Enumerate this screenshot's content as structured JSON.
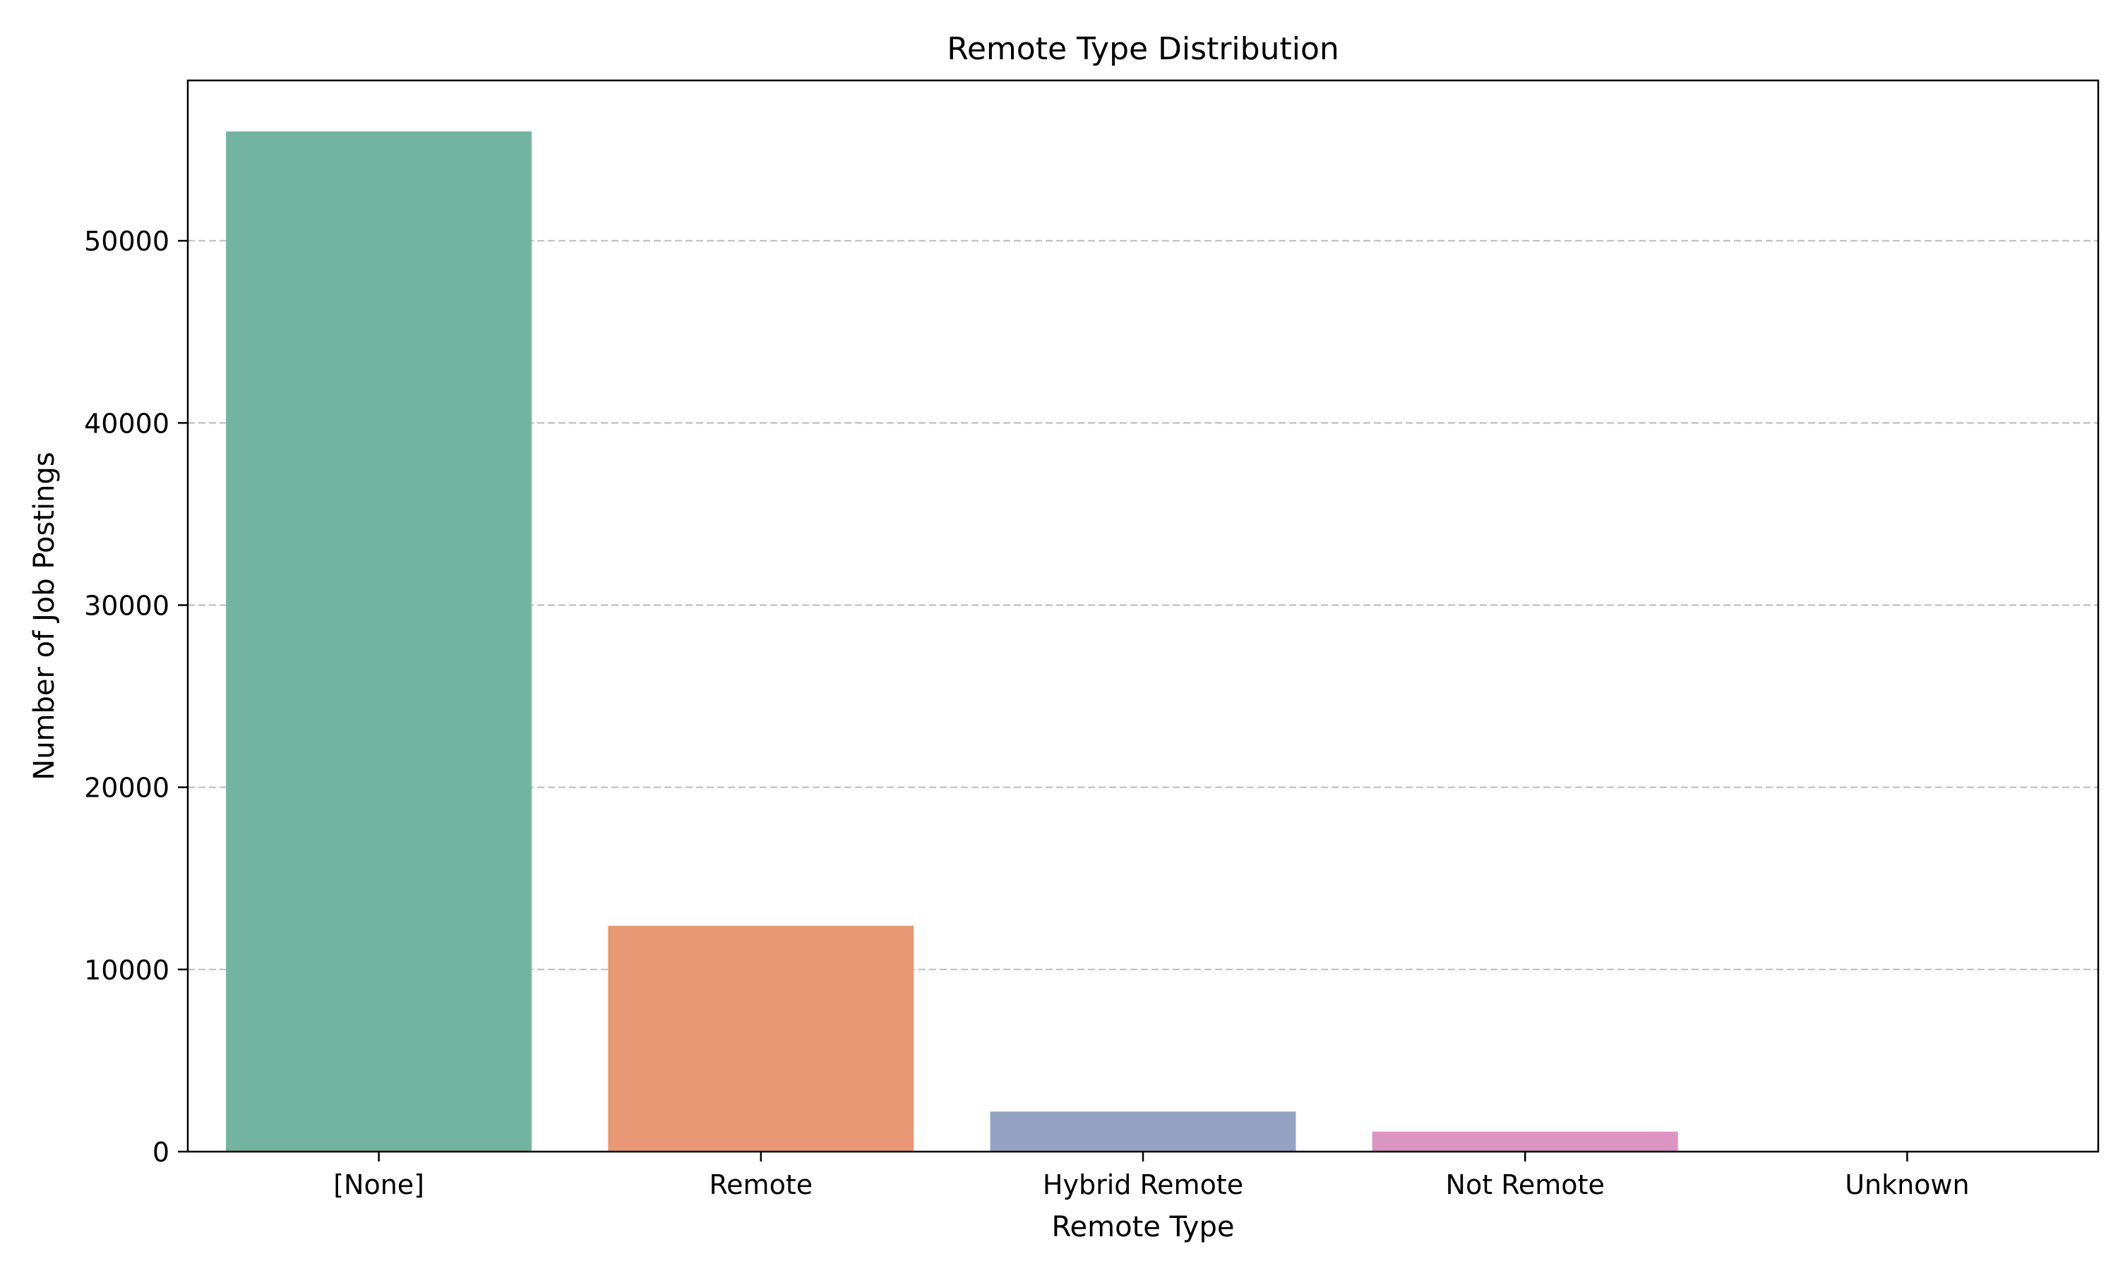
{
  "chart_data": {
    "type": "bar",
    "title": "Remote Type Distribution",
    "xlabel": "Remote Type",
    "ylabel": "Number of Job Postings",
    "categories": [
      "[None]",
      "Remote",
      "Hybrid Remote",
      "Not Remote",
      "Unknown"
    ],
    "values": [
      56000,
      12400,
      2200,
      1100,
      10
    ],
    "colors": [
      "#72b49f",
      "#e89874",
      "#94a3c3",
      "#dc94c2",
      "#a6d854"
    ],
    "ylim": [
      0,
      58800
    ],
    "yticks": [
      0,
      10000,
      20000,
      30000,
      40000,
      50000
    ],
    "ytick_labels": [
      "0",
      "10000",
      "20000",
      "30000",
      "40000",
      "50000"
    ],
    "grid": {
      "axis": "y",
      "style": "dashed",
      "color": "#c0c0c0"
    },
    "legend": "none"
  }
}
